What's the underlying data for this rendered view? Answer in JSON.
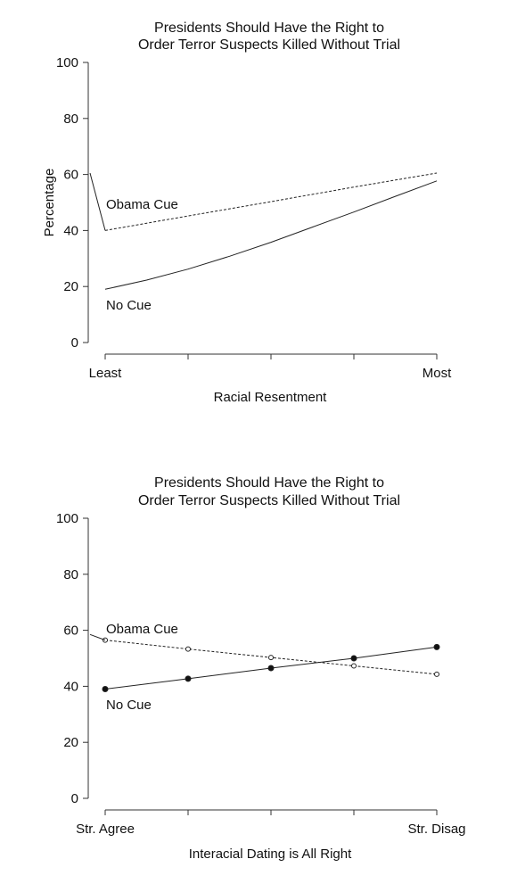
{
  "chart_data": [
    {
      "type": "line",
      "title_line1": "Presidents Should Have the Right to",
      "title_line2": "Order Terror Suspects Killed Without Trial",
      "ylabel": "Percentage",
      "xlabel": "Racial Resentment",
      "ylim": [
        0,
        100
      ],
      "yticks": [
        0,
        20,
        40,
        60,
        80,
        100
      ],
      "xlim": [
        0,
        1
      ],
      "xtick_positions": [
        0,
        0.25,
        0.5,
        0.75,
        1
      ],
      "xtick_labels": [
        "Least",
        "",
        "",
        "",
        "Most"
      ],
      "grid": false,
      "series": [
        {
          "name": "Obama Cue",
          "style": "dashed",
          "markers": "none",
          "x": [
            0,
            0.25,
            0.5,
            0.75,
            1
          ],
          "values": [
            40,
            45.2,
            50.3,
            55.5,
            60.5
          ]
        },
        {
          "name": "No Cue",
          "style": "solid",
          "markers": "none",
          "x": [
            0,
            0.125,
            0.25,
            0.375,
            0.5,
            0.625,
            0.75,
            0.875,
            1
          ],
          "values": [
            19,
            22.3,
            26.2,
            30.8,
            35.8,
            41.2,
            46.6,
            52.2,
            57.7
          ]
        }
      ]
    },
    {
      "type": "line",
      "title_line1": "Presidents Should Have the Right to",
      "title_line2": "Order Terror Suspects Killed Without Trial",
      "ylabel": "",
      "xlabel": "Interacial Dating is All Right",
      "ylim": [
        0,
        100
      ],
      "yticks": [
        0,
        20,
        40,
        60,
        80,
        100
      ],
      "xlim": [
        0,
        1
      ],
      "xtick_positions": [
        0,
        0.25,
        0.5,
        0.75,
        1
      ],
      "xtick_labels": [
        "Str. Agree",
        "",
        "",
        "",
        "Str. Disag"
      ],
      "grid": false,
      "series": [
        {
          "name": "Obama Cue",
          "style": "dashed",
          "markers": "open-circle",
          "x": [
            0,
            0.25,
            0.5,
            0.75,
            1
          ],
          "values": [
            56.5,
            53.3,
            50.3,
            47.3,
            44.3
          ]
        },
        {
          "name": "No Cue",
          "style": "solid",
          "markers": "filled-circle",
          "x": [
            0,
            0.25,
            0.5,
            0.75,
            1
          ],
          "values": [
            39,
            42.7,
            46.5,
            50,
            54
          ]
        }
      ]
    }
  ]
}
